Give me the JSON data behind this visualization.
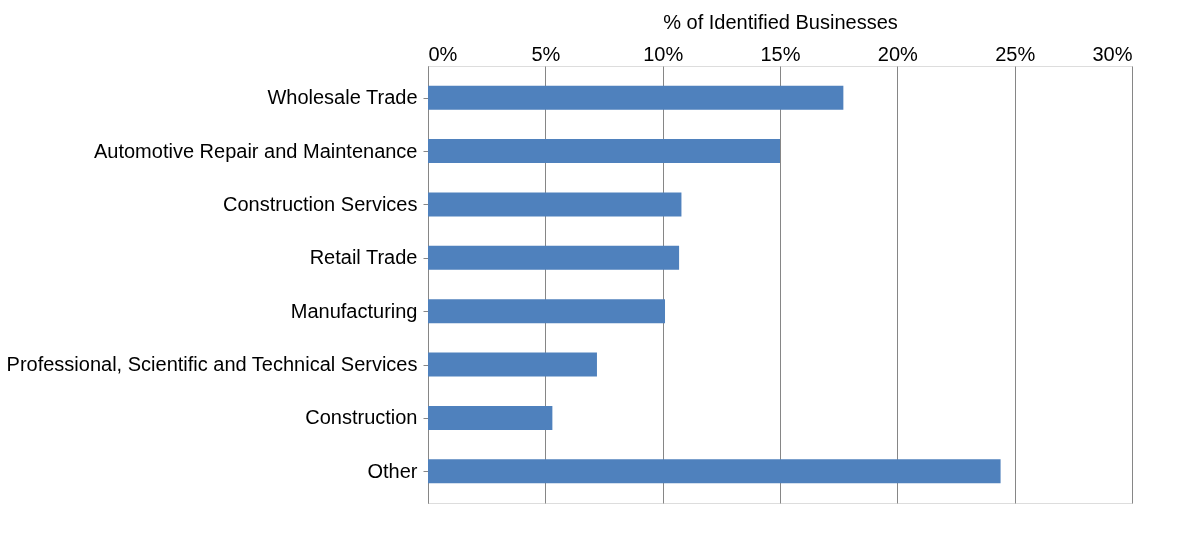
{
  "chart_data": {
    "type": "bar",
    "orientation": "horizontal",
    "xlabel": "% of Identified Businesses",
    "categories": [
      "Wholesale Trade",
      "Automotive Repair and Maintenance",
      "Construction Services",
      "Retail Trade",
      "Manufacturing",
      "Professional, Scientific and Technical Services",
      "Construction",
      "Other"
    ],
    "values": [
      17.7,
      15.0,
      10.8,
      10.7,
      10.1,
      7.2,
      5.3,
      24.4
    ],
    "color": "#4f81bd",
    "xlim": [
      0,
      30
    ],
    "xticks": [
      {
        "value": 0,
        "label": "0%"
      },
      {
        "value": 5,
        "label": "5%"
      },
      {
        "value": 10,
        "label": "10%"
      },
      {
        "value": 15,
        "label": "15%"
      },
      {
        "value": 20,
        "label": "20%"
      },
      {
        "value": 25,
        "label": "25%"
      },
      {
        "value": 30,
        "label": "30%"
      }
    ],
    "grid": "x"
  }
}
